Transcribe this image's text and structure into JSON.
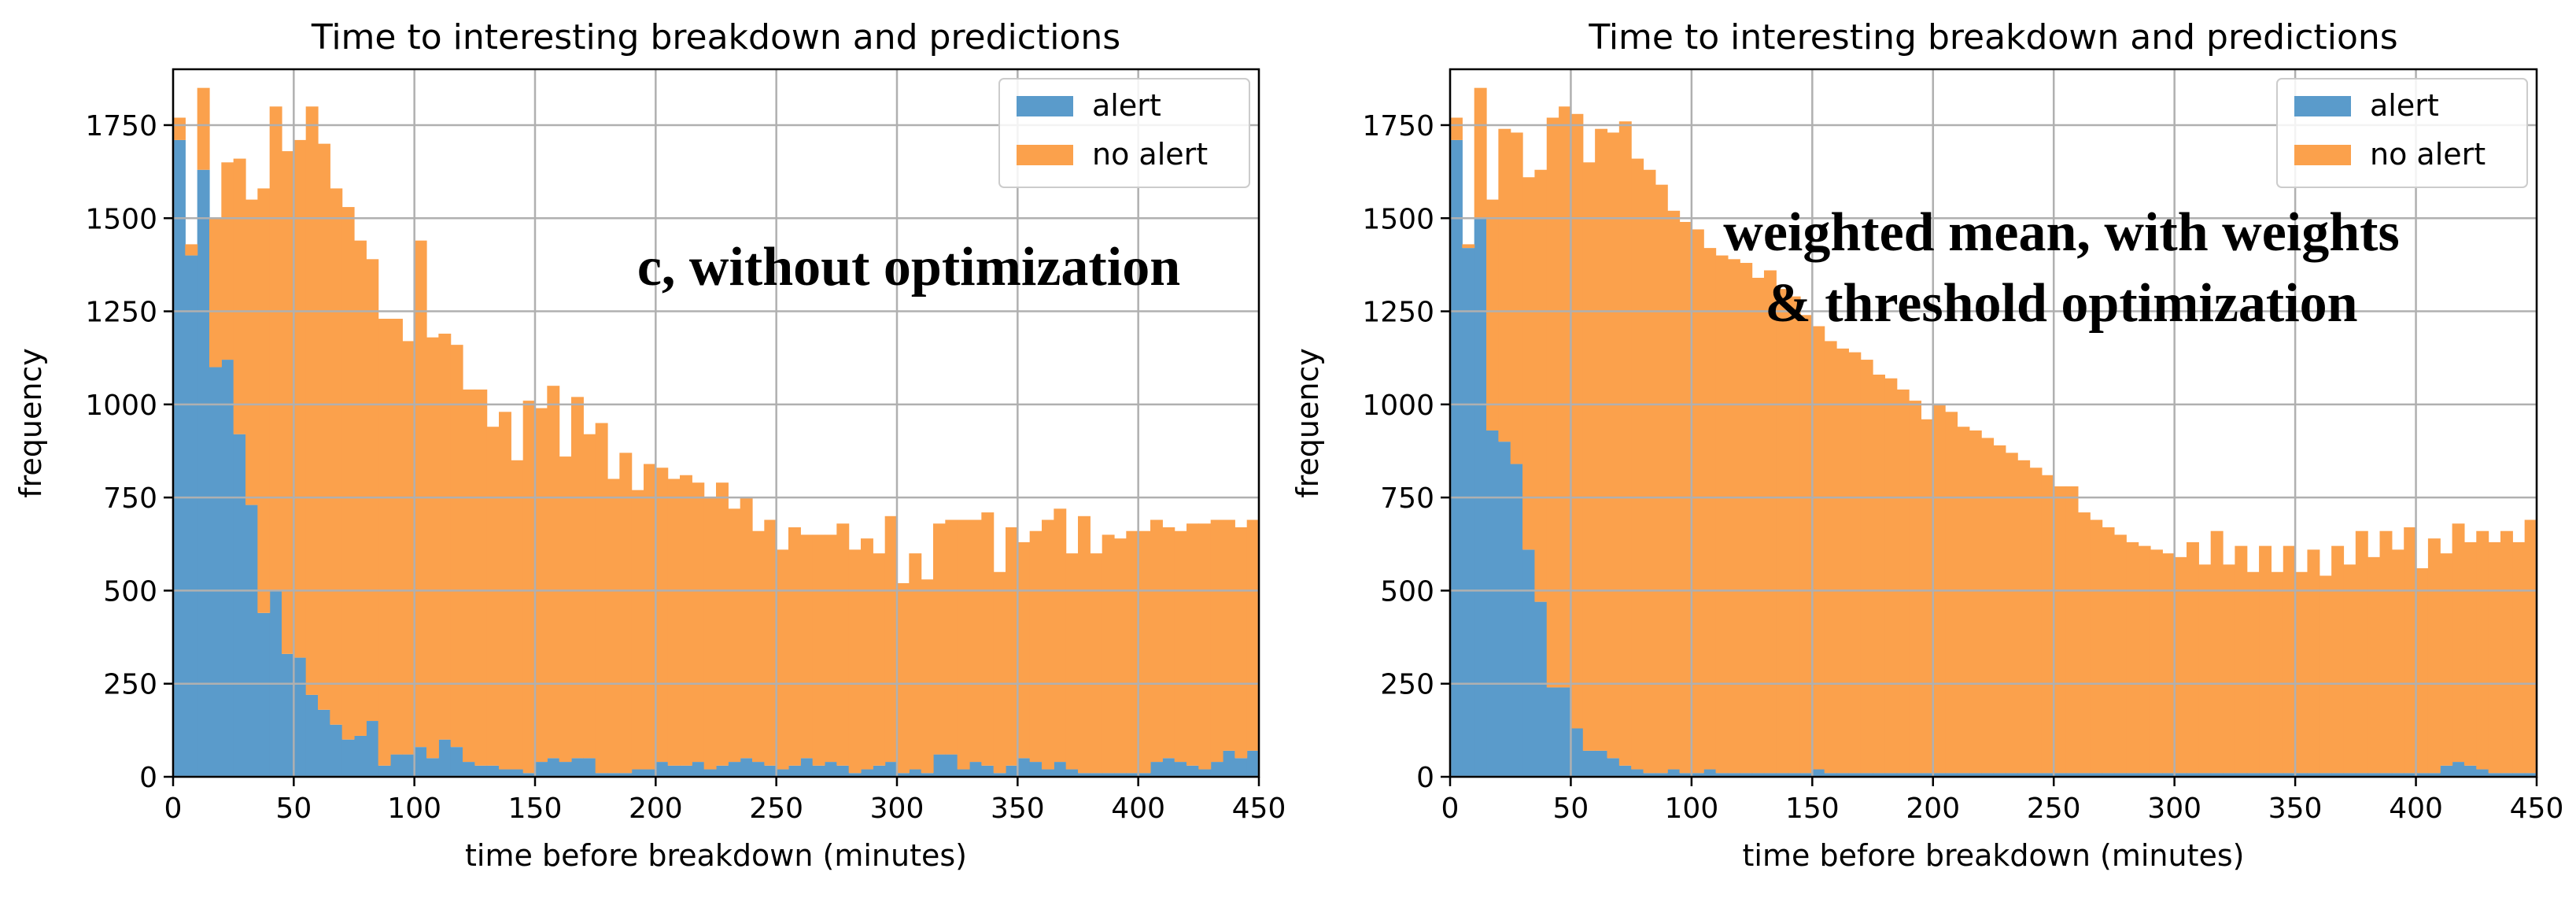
{
  "colors": {
    "alert": "#5a9bcb",
    "no_alert": "#fba14c",
    "grid": "#b0b0b0",
    "axis": "#000000"
  },
  "chart_data": [
    {
      "type": "bar",
      "stacked": true,
      "title": "Time to interesting breakdown and predictions",
      "xlabel": "time before breakdown (minutes)",
      "ylabel": "frequency",
      "xlim": [
        0,
        450
      ],
      "ylim": [
        0,
        1900
      ],
      "grid": true,
      "legend_position": "top-right",
      "x_ticks": [
        0,
        50,
        100,
        150,
        200,
        250,
        300,
        350,
        400,
        450
      ],
      "y_ticks": [
        0,
        250,
        500,
        750,
        1000,
        1250,
        1500,
        1750
      ],
      "tick_labels_x": [
        "0",
        "50",
        "100",
        "150",
        "200",
        "250",
        "300",
        "350",
        "400",
        "450"
      ],
      "tick_labels_y": [
        "0",
        "250",
        "500",
        "750",
        "1000",
        "1250",
        "1500",
        "1750"
      ],
      "legend": [
        "alert",
        "no alert"
      ],
      "annotation": [
        "c, without optimization"
      ],
      "bin_width": 5,
      "series": [
        {
          "name": "alert",
          "values": [
            1710,
            1400,
            1630,
            1100,
            1120,
            920,
            730,
            440,
            500,
            330,
            320,
            220,
            180,
            140,
            100,
            110,
            150,
            30,
            60,
            60,
            80,
            50,
            100,
            80,
            40,
            30,
            30,
            20,
            20,
            10,
            40,
            50,
            40,
            50,
            50,
            10,
            10,
            10,
            20,
            20,
            40,
            30,
            30,
            40,
            20,
            30,
            40,
            50,
            40,
            30,
            20,
            30,
            50,
            30,
            40,
            30,
            10,
            20,
            30,
            40,
            10,
            20,
            10,
            60,
            60,
            20,
            40,
            30,
            10,
            30,
            50,
            40,
            20,
            40,
            20,
            10,
            10,
            10,
            10,
            10,
            10,
            40,
            50,
            40,
            30,
            20,
            40,
            70,
            50,
            70
          ]
        },
        {
          "name": "no alert",
          "values": [
            60,
            30,
            220,
            400,
            530,
            740,
            820,
            1140,
            1300,
            1350,
            1390,
            1580,
            1520,
            1440,
            1430,
            1330,
            1240,
            1200,
            1170,
            1110,
            1360,
            1130,
            1090,
            1080,
            1000,
            1010,
            910,
            960,
            830,
            1000,
            950,
            1000,
            820,
            970,
            870,
            940,
            790,
            860,
            750,
            820,
            790,
            770,
            780,
            750,
            730,
            760,
            680,
            700,
            620,
            660,
            590,
            640,
            600,
            620,
            610,
            650,
            600,
            620,
            570,
            660,
            510,
            580,
            520,
            620,
            630,
            670,
            650,
            680,
            540,
            640,
            580,
            620,
            670,
            680,
            580,
            690,
            590,
            640,
            630,
            650,
            650,
            650,
            620,
            620,
            650,
            660,
            650,
            620,
            620,
            620
          ]
        }
      ]
    },
    {
      "type": "bar",
      "stacked": true,
      "title": "Time to interesting breakdown and predictions",
      "xlabel": "time before breakdown (minutes)",
      "ylabel": "frequency",
      "xlim": [
        0,
        450
      ],
      "ylim": [
        0,
        1900
      ],
      "grid": true,
      "legend_position": "top-right",
      "x_ticks": [
        0,
        50,
        100,
        150,
        200,
        250,
        300,
        350,
        400,
        450
      ],
      "y_ticks": [
        0,
        250,
        500,
        750,
        1000,
        1250,
        1500,
        1750
      ],
      "tick_labels_x": [
        "0",
        "50",
        "100",
        "150",
        "200",
        "250",
        "300",
        "350",
        "400",
        "450"
      ],
      "tick_labels_y": [
        "0",
        "250",
        "500",
        "750",
        "1000",
        "1250",
        "1500",
        "1750"
      ],
      "legend": [
        "alert",
        "no alert"
      ],
      "annotation": [
        "weighted mean, with weights",
        "& threshold optimization"
      ],
      "bin_width": 5,
      "series": [
        {
          "name": "alert",
          "values": [
            1710,
            1420,
            1500,
            930,
            900,
            840,
            610,
            470,
            240,
            240,
            130,
            70,
            70,
            50,
            30,
            20,
            10,
            10,
            20,
            10,
            10,
            20,
            10,
            10,
            10,
            10,
            10,
            10,
            10,
            10,
            20,
            10,
            10,
            10,
            10,
            10,
            10,
            10,
            10,
            10,
            10,
            10,
            10,
            10,
            10,
            10,
            10,
            10,
            10,
            10,
            10,
            10,
            10,
            10,
            10,
            10,
            10,
            10,
            10,
            10,
            10,
            10,
            10,
            10,
            10,
            10,
            10,
            10,
            10,
            10,
            10,
            10,
            10,
            10,
            10,
            10,
            10,
            10,
            10,
            10,
            10,
            10,
            30,
            40,
            30,
            20,
            10,
            10,
            10,
            10
          ]
        },
        {
          "name": "no alert",
          "values": [
            60,
            10,
            350,
            620,
            840,
            890,
            1000,
            1160,
            1530,
            1560,
            1650,
            1580,
            1670,
            1680,
            1730,
            1640,
            1620,
            1580,
            1500,
            1480,
            1460,
            1400,
            1390,
            1380,
            1370,
            1330,
            1350,
            1300,
            1280,
            1230,
            1190,
            1160,
            1140,
            1130,
            1110,
            1070,
            1060,
            1030,
            1000,
            950,
            990,
            970,
            930,
            920,
            900,
            880,
            860,
            840,
            820,
            800,
            770,
            770,
            700,
            680,
            660,
            640,
            620,
            610,
            600,
            590,
            580,
            620,
            560,
            650,
            560,
            610,
            540,
            610,
            540,
            610,
            540,
            600,
            530,
            610,
            560,
            650,
            580,
            650,
            600,
            660,
            550,
            630,
            570,
            640,
            600,
            640,
            620,
            650,
            620,
            680
          ]
        }
      ]
    }
  ]
}
